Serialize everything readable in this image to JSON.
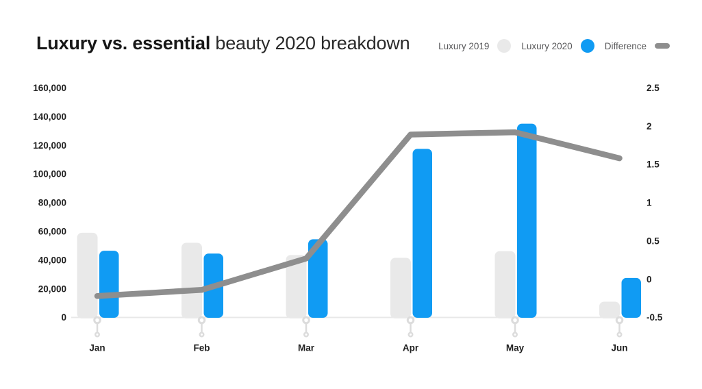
{
  "title": {
    "bold": "Luxury vs. essential",
    "regular": " beauty 2020 breakdown"
  },
  "legend": [
    {
      "label": "Luxury 2019",
      "swatch": "circle",
      "color": "#e9e9e9"
    },
    {
      "label": "Luxury 2020",
      "swatch": "circle",
      "color": "#109bf3"
    },
    {
      "label": "Difference",
      "swatch": "pill",
      "color": "#8e8e8e"
    }
  ],
  "chart_data": {
    "type": "bar",
    "subtype": "grouped bars with line overlay on secondary axis",
    "title": "Luxury vs. essential beauty 2020 breakdown",
    "categories": [
      "Jan",
      "Feb",
      "Mar",
      "Apr",
      "May",
      "Jun"
    ],
    "series": [
      {
        "name": "Luxury 2019",
        "type": "bar",
        "axis": "left",
        "color": "#e9e9e9",
        "values": [
          59000,
          52000,
          43500,
          41500,
          46200,
          11000
        ]
      },
      {
        "name": "Luxury 2020",
        "type": "bar",
        "axis": "left",
        "color": "#109bf3",
        "values": [
          46500,
          44500,
          54500,
          117500,
          135000,
          27500
        ]
      },
      {
        "name": "Difference",
        "type": "line",
        "axis": "right",
        "color": "#8e8e8e",
        "values": [
          -0.22,
          -0.14,
          0.27,
          1.89,
          1.92,
          1.58
        ]
      }
    ],
    "left_axis": {
      "min": 0,
      "max": 160000,
      "ticks": [
        {
          "value": 160000,
          "label": "160,000"
        },
        {
          "value": 140000,
          "label": "140,000"
        },
        {
          "value": 120000,
          "label": "120,000"
        },
        {
          "value": 100000,
          "label": "100,000"
        },
        {
          "value": 80000,
          "label": "80,000"
        },
        {
          "value": 60000,
          "label": "60,000"
        },
        {
          "value": 40000,
          "label": "40,000"
        },
        {
          "value": 20000,
          "label": "20,000"
        },
        {
          "value": 0,
          "label": "0"
        }
      ]
    },
    "right_axis": {
      "min": -0.5,
      "max": 2.5,
      "ticks": [
        {
          "value": 2.5,
          "label": "2.5"
        },
        {
          "value": 2,
          "label": "2"
        },
        {
          "value": 1.5,
          "label": "1.5"
        },
        {
          "value": 1,
          "label": "1"
        },
        {
          "value": 0.5,
          "label": "0.5"
        },
        {
          "value": 0,
          "label": "0"
        },
        {
          "value": -0.5,
          "label": "-0.5"
        }
      ]
    },
    "grid": "baseline only, no horizontal gridlines",
    "legend_position": "top-right"
  },
  "colors": {
    "background": "#ffffff",
    "bar_2019": "#e9e9e9",
    "bar_2020": "#109bf3",
    "difference_line": "#8e8e8e",
    "baseline": "#e8e8e8",
    "tick_pin": "#dcdcdc",
    "axis_text": "#1f1f1f",
    "legend_text": "#58585a"
  }
}
